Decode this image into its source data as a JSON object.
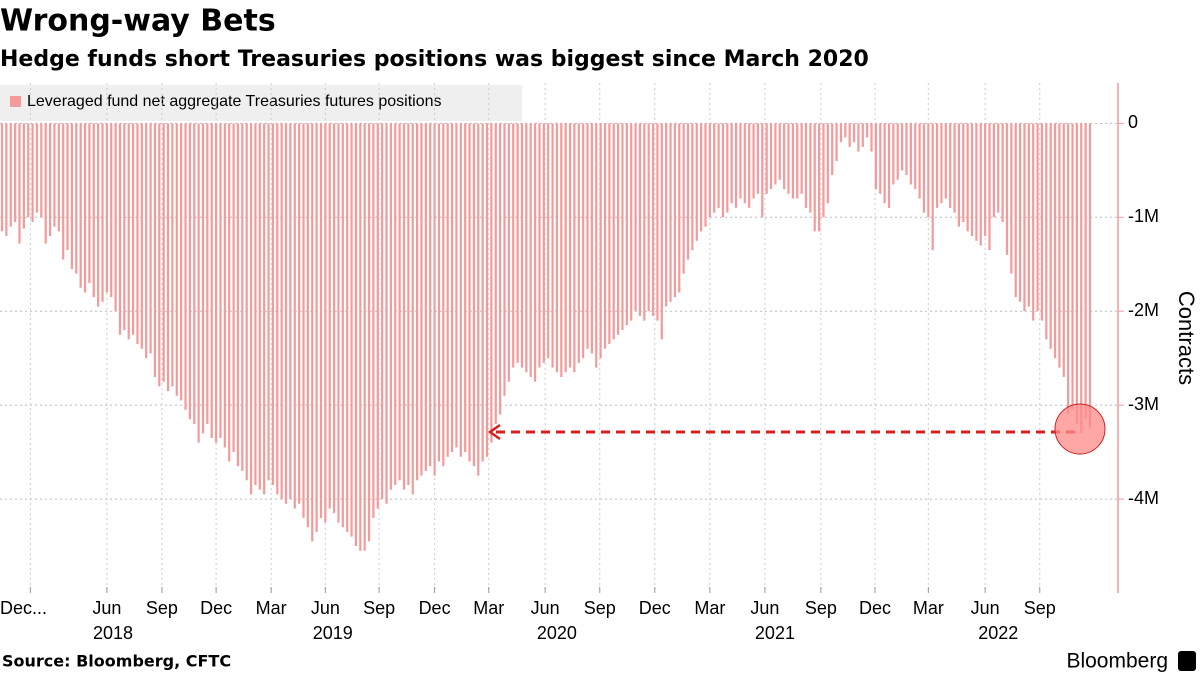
{
  "chart_data": {
    "type": "bar",
    "title": "Wrong-way Bets",
    "subtitle": "Hedge funds short Treasuries positions was biggest since March 2020",
    "ylabel": "Contracts",
    "source": "Source: Bloomberg, CFTC",
    "brand": "Bloomberg",
    "series": [
      {
        "name": "Leveraged fund net aggregate Treasuries futures positions",
        "color": "#f49a9a",
        "values": [
          -1.15,
          -1.2,
          -1.1,
          -1.05,
          -1.28,
          -1.12,
          -1.0,
          -1.05,
          -0.95,
          -1.0,
          -1.28,
          -1.2,
          -1.1,
          -1.15,
          -1.45,
          -1.35,
          -1.55,
          -1.6,
          -1.75,
          -1.8,
          -1.7,
          -1.85,
          -1.95,
          -1.9,
          -1.8,
          -1.85,
          -2.0,
          -2.25,
          -2.2,
          -2.3,
          -2.25,
          -2.35,
          -2.4,
          -2.5,
          -2.45,
          -2.7,
          -2.8,
          -2.75,
          -2.85,
          -2.8,
          -2.9,
          -2.95,
          -3.05,
          -3.15,
          -3.2,
          -3.4,
          -3.3,
          -3.2,
          -3.35,
          -3.4,
          -3.35,
          -3.45,
          -3.6,
          -3.5,
          -3.65,
          -3.7,
          -3.8,
          -3.95,
          -3.85,
          -3.9,
          -3.95,
          -3.8,
          -3.85,
          -3.95,
          -4.0,
          -4.05,
          -4.0,
          -4.1,
          -4.05,
          -4.2,
          -4.3,
          -4.45,
          -4.35,
          -4.2,
          -4.25,
          -4.1,
          -4.15,
          -4.25,
          -4.3,
          -4.35,
          -4.4,
          -4.5,
          -4.55,
          -4.55,
          -4.45,
          -4.2,
          -4.1,
          -4.0,
          -4.05,
          -3.9,
          -3.85,
          -3.8,
          -3.9,
          -3.85,
          -3.95,
          -3.8,
          -3.75,
          -3.7,
          -3.65,
          -3.75,
          -3.6,
          -3.65,
          -3.55,
          -3.5,
          -3.45,
          -3.55,
          -3.5,
          -3.6,
          -3.65,
          -3.75,
          -3.6,
          -3.55,
          -3.4,
          -3.2,
          -3.1,
          -2.9,
          -2.75,
          -2.6,
          -2.55,
          -2.6,
          -2.65,
          -2.7,
          -2.75,
          -2.6,
          -2.55,
          -2.5,
          -2.6,
          -2.65,
          -2.7,
          -2.65,
          -2.6,
          -2.65,
          -2.55,
          -2.5,
          -2.4,
          -2.45,
          -2.6,
          -2.5,
          -2.4,
          -2.35,
          -2.3,
          -2.25,
          -2.2,
          -2.15,
          -2.1,
          -2.0,
          -2.05,
          -2.1,
          -2.0,
          -2.05,
          -2.1,
          -2.3,
          -1.95,
          -1.9,
          -1.85,
          -1.8,
          -1.6,
          -1.45,
          -1.35,
          -1.25,
          -1.15,
          -1.1,
          -1.0,
          -0.95,
          -0.9,
          -1.0,
          -0.95,
          -0.85,
          -0.9,
          -0.8,
          -0.85,
          -0.9,
          -0.8,
          -0.75,
          -1.0,
          -0.75,
          -0.7,
          -0.65,
          -0.6,
          -0.7,
          -0.75,
          -0.8,
          -0.8,
          -0.75,
          -0.9,
          -0.95,
          -1.15,
          -1.15,
          -1.0,
          -0.85,
          -0.55,
          -0.4,
          -0.2,
          -0.15,
          -0.25,
          -0.2,
          -0.3,
          -0.25,
          -0.15,
          -0.3,
          -0.7,
          -0.75,
          -0.85,
          -0.9,
          -0.65,
          -0.6,
          -0.5,
          -0.55,
          -0.65,
          -0.7,
          -0.8,
          -0.95,
          -1.0,
          -1.35,
          -0.9,
          -0.85,
          -0.8,
          -0.9,
          -0.95,
          -1.1,
          -1.05,
          -1.15,
          -1.2,
          -1.25,
          -1.3,
          -1.2,
          -1.35,
          -1.0,
          -0.95,
          -1.05,
          -1.4,
          -1.6,
          -1.85,
          -1.9,
          -2.0,
          -1.95,
          -2.1,
          -2.0,
          -2.1,
          -2.3,
          -2.4,
          -2.5,
          -2.6,
          -2.7,
          -3.1,
          -3.05,
          -3.2,
          -3.3,
          -3.15,
          -3.25
        ]
      }
    ],
    "xlim": [
      0,
      249
    ],
    "xticks": [
      {
        "value": 6.5,
        "label": "Dec..."
      },
      {
        "value": 24,
        "label": "Jun"
      },
      {
        "value": 36.6,
        "label": "Sep"
      },
      {
        "value": 49,
        "label": "Dec"
      },
      {
        "value": 61.6,
        "label": "Mar"
      },
      {
        "value": 74,
        "label": "Jun"
      },
      {
        "value": 86.3,
        "label": "Sep"
      },
      {
        "value": 99,
        "label": "Dec"
      },
      {
        "value": 111.4,
        "label": "Mar"
      },
      {
        "value": 124.3,
        "label": "Jun"
      },
      {
        "value": 136.8,
        "label": "Sep"
      },
      {
        "value": 149.4,
        "label": "Dec"
      },
      {
        "value": 162,
        "label": "Mar"
      },
      {
        "value": 174.6,
        "label": "Jun"
      },
      {
        "value": 187.4,
        "label": "Sep"
      },
      {
        "value": 199.8,
        "label": "Dec"
      },
      {
        "value": 212,
        "label": "Mar"
      },
      {
        "value": 225,
        "label": "Jun"
      },
      {
        "value": 237.5,
        "label": "Sep"
      }
    ],
    "year_ticks": [
      {
        "value": 25.4,
        "label": "2018"
      },
      {
        "value": 75.7,
        "label": "2019"
      },
      {
        "value": 127,
        "label": "2020"
      },
      {
        "value": 176.9,
        "label": "2021"
      },
      {
        "value": 228,
        "label": "2022"
      }
    ],
    "ylim": [
      -5,
      0.43
    ],
    "yticks": [
      0,
      {
        "value": -1,
        "label": "-1M"
      },
      {
        "value": -2,
        "label": "-2M"
      },
      {
        "value": -3,
        "label": "-3M"
      },
      {
        "value": -4,
        "label": "-4M"
      }
    ],
    "grid": true,
    "legend": "top-left"
  }
}
